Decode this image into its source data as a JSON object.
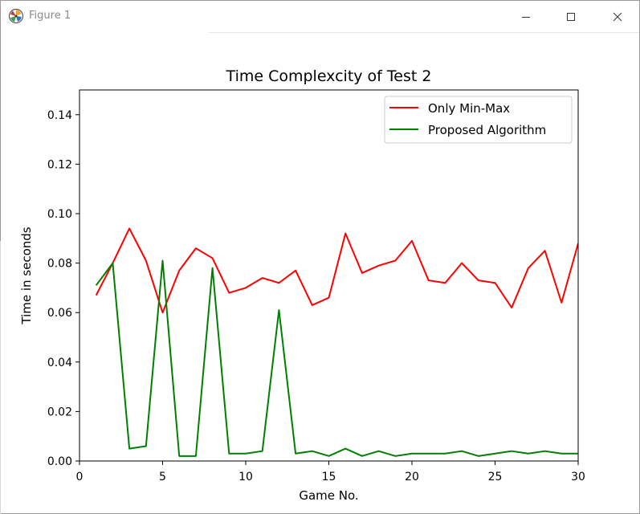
{
  "window": {
    "title": "Figure 1",
    "icon": "matplotlib-logo-icon"
  },
  "chart_data": {
    "type": "line",
    "title": "Time Complexcity of Test 2",
    "xlabel": "Game No.",
    "ylabel": "Time in seconds",
    "xlim": [
      0,
      30
    ],
    "ylim": [
      0.0,
      0.15
    ],
    "x_ticks": [
      0,
      5,
      10,
      15,
      20,
      25,
      30
    ],
    "x_tick_labels": [
      "0",
      "5",
      "10",
      "15",
      "20",
      "25",
      "30"
    ],
    "y_ticks": [
      0.0,
      0.02,
      0.04,
      0.06,
      0.08,
      0.1,
      0.12,
      0.14
    ],
    "y_tick_labels": [
      "0.00",
      "0.02",
      "0.04",
      "0.06",
      "0.08",
      "0.10",
      "0.12",
      "0.14"
    ],
    "grid": false,
    "legend_position": "top-right",
    "x": [
      1,
      2,
      3,
      4,
      5,
      6,
      7,
      8,
      9,
      10,
      11,
      12,
      13,
      14,
      15,
      16,
      17,
      18,
      19,
      20,
      21,
      22,
      23,
      24,
      25,
      26,
      27,
      28,
      29,
      30
    ],
    "series": [
      {
        "name": "Only Min-Max",
        "color": "#ff0000",
        "values": [
          0.067,
          0.08,
          0.094,
          0.081,
          0.06,
          0.077,
          0.086,
          0.082,
          0.068,
          0.07,
          0.074,
          0.072,
          0.077,
          0.063,
          0.066,
          0.092,
          0.076,
          0.079,
          0.081,
          0.089,
          0.073,
          0.072,
          0.08,
          0.073,
          0.072,
          0.062,
          0.078,
          0.085,
          0.064,
          0.088
        ]
      },
      {
        "name": "Proposed Algorithm",
        "color": "#008000",
        "values": [
          0.071,
          0.08,
          0.005,
          0.006,
          0.081,
          0.002,
          0.002,
          0.078,
          0.003,
          0.003,
          0.004,
          0.061,
          0.003,
          0.004,
          0.002,
          0.005,
          0.002,
          0.004,
          0.002,
          0.003,
          0.003,
          0.003,
          0.004,
          0.002,
          0.003,
          0.004,
          0.003,
          0.004,
          0.003,
          0.003
        ]
      }
    ]
  }
}
